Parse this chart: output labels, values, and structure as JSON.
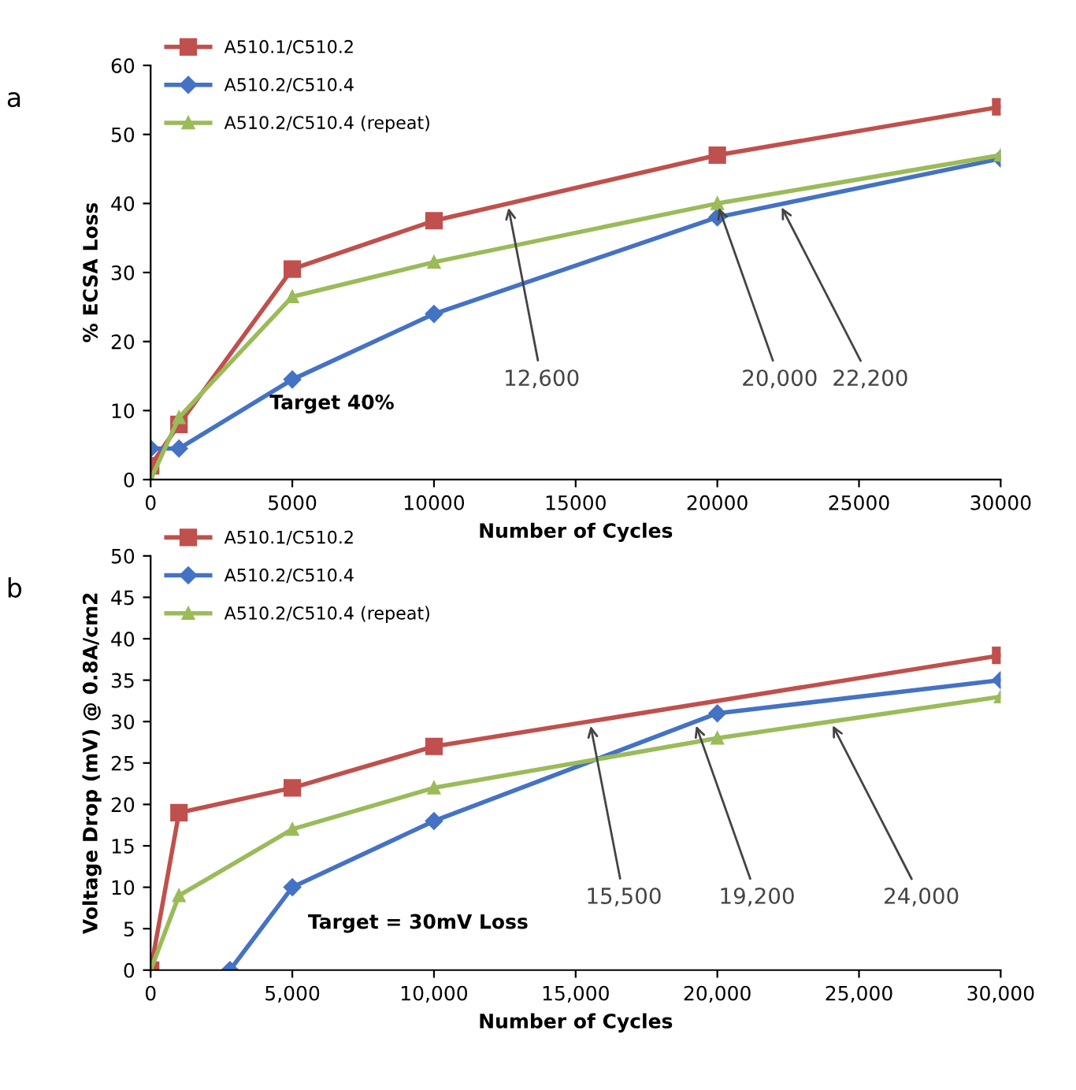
{
  "chart_data": [
    {
      "type": "line",
      "title": "a",
      "xlabel": "Number of Cycles",
      "ylabel": "% ECSA Loss",
      "xlim": [
        0,
        30000
      ],
      "ylim": [
        0,
        60
      ],
      "xticks": [
        0,
        5000,
        10000,
        15000,
        20000,
        25000,
        30000
      ],
      "yticks": [
        0,
        10,
        20,
        30,
        40,
        50,
        60
      ],
      "legend": "top left",
      "grid": false,
      "series": [
        {
          "name": "A510.1/C510.2",
          "color": "#c0504d",
          "marker": "square",
          "x": [
            0,
            1000,
            5000,
            10000,
            20000,
            30000
          ],
          "values": [
            2,
            8,
            30.5,
            37.5,
            47,
            54
          ]
        },
        {
          "name": "A510.2/C510.4",
          "color": "#4472c4",
          "marker": "diamond",
          "x": [
            0,
            1000,
            5000,
            10000,
            20000,
            30000
          ],
          "values": [
            4.5,
            4.5,
            14.5,
            24,
            38,
            46.5
          ]
        },
        {
          "name": "A510.2/C510.4 (repeat)",
          "color": "#9bbb59",
          "marker": "triangle",
          "x": [
            0,
            1000,
            5000,
            10000,
            20000,
            30000
          ],
          "values": [
            0,
            9,
            26.5,
            31.5,
            40,
            47
          ]
        }
      ],
      "annotations": [
        {
          "text": "12,600",
          "x": 12600,
          "y": 40
        },
        {
          "text": "20,000",
          "x": 20000,
          "y": 40
        },
        {
          "text": "22,200",
          "x": 22200,
          "y": 40
        },
        "Target 40%"
      ]
    },
    {
      "type": "line",
      "title": "b",
      "xlabel": "Number of Cycles",
      "ylabel": "Voltage Drop (mV) @ 0.8A/cm2",
      "xlim": [
        0,
        30000
      ],
      "ylim": [
        0,
        50
      ],
      "xticks": [
        {
          "value": 0,
          "label": "0"
        },
        {
          "value": 5000,
          "label": "5,000"
        },
        {
          "value": 10000,
          "label": "10,000"
        },
        {
          "value": 15000,
          "label": "15,000"
        },
        {
          "value": 20000,
          "label": "20,000"
        },
        {
          "value": 25000,
          "label": "25,000"
        },
        {
          "value": 30000,
          "label": "30,000"
        }
      ],
      "yticks": [
        0,
        5,
        10,
        15,
        20,
        25,
        30,
        35,
        40,
        45,
        50
      ],
      "legend": "top left",
      "grid": false,
      "series": [
        {
          "name": "A510.1/C510.2",
          "color": "#c0504d",
          "marker": "square",
          "x": [
            0,
            1000,
            5000,
            10000,
            30000
          ],
          "values": [
            0,
            19,
            22,
            27,
            38
          ]
        },
        {
          "name": "A510.2/C510.4",
          "color": "#4472c4",
          "marker": "diamond",
          "x": [
            2800,
            5000,
            10000,
            20000,
            30000
          ],
          "values": [
            0,
            10,
            18,
            31,
            35
          ]
        },
        {
          "name": "A510.2/C510.4 (repeat)",
          "color": "#9bbb59",
          "marker": "triangle",
          "x": [
            0,
            1000,
            5000,
            10000,
            20000,
            30000
          ],
          "values": [
            0,
            9,
            17,
            22,
            28,
            33
          ]
        }
      ],
      "annotations": [
        {
          "text": "15,500",
          "x": 15500,
          "y": 30
        },
        {
          "text": "19,200",
          "x": 19200,
          "y": 30
        },
        {
          "text": "24,000",
          "x": 24000,
          "y": 30
        },
        "Target = 30mV Loss"
      ]
    }
  ]
}
